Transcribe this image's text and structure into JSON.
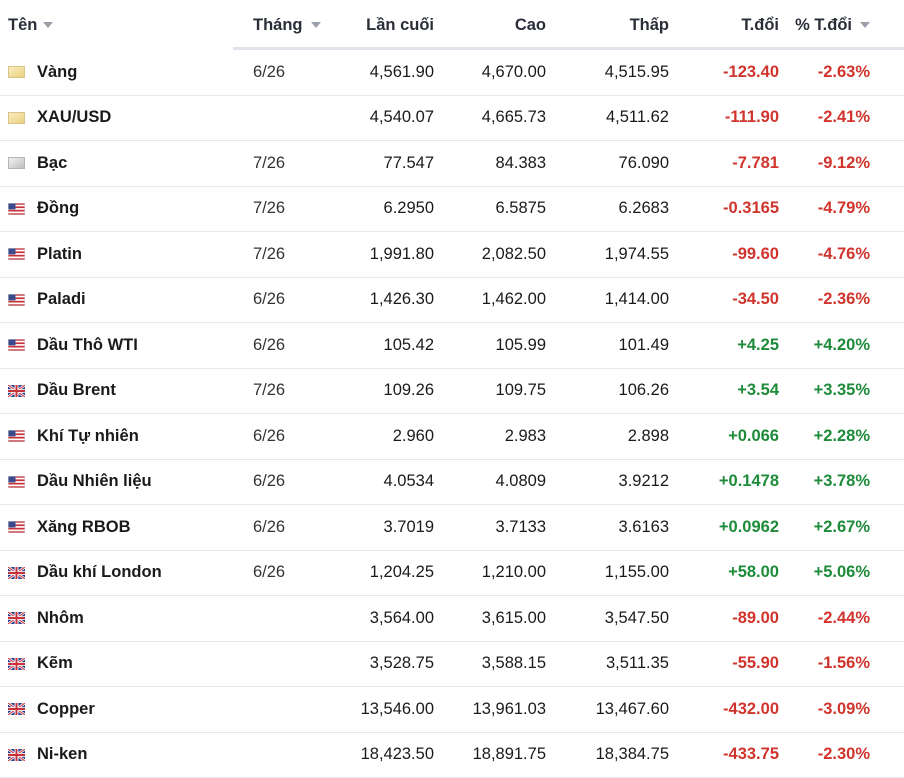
{
  "header": {
    "name": "Tên",
    "month": "Tháng",
    "last": "Lần cuối",
    "high": "Cao",
    "low": "Thấp",
    "change": "T.đổi",
    "change_pct": "% T.đổi"
  },
  "colors": {
    "negative": "#d0342c",
    "positive": "#1e8b3a"
  },
  "rows": [
    {
      "icon": "gold-icon",
      "name": "Vàng",
      "month": "6/26",
      "last": "4,561.90",
      "high": "4,670.00",
      "low": "4,515.95",
      "change": "-123.40",
      "change_pct": "-2.63%"
    },
    {
      "icon": "gold-icon",
      "name": "XAU/USD",
      "month": "",
      "last": "4,540.07",
      "high": "4,665.73",
      "low": "4,511.62",
      "change": "-111.90",
      "change_pct": "-2.41%"
    },
    {
      "icon": "silver-icon",
      "name": "Bạc",
      "month": "7/26",
      "last": "77.547",
      "high": "84.383",
      "low": "76.090",
      "change": "-7.781",
      "change_pct": "-9.12%"
    },
    {
      "icon": "us-flag-icon",
      "name": "Đồng",
      "month": "7/26",
      "last": "6.2950",
      "high": "6.5875",
      "low": "6.2683",
      "change": "-0.3165",
      "change_pct": "-4.79%"
    },
    {
      "icon": "us-flag-icon",
      "name": "Platin",
      "month": "7/26",
      "last": "1,991.80",
      "high": "2,082.50",
      "low": "1,974.55",
      "change": "-99.60",
      "change_pct": "-4.76%"
    },
    {
      "icon": "us-flag-icon",
      "name": "Paladi",
      "month": "6/26",
      "last": "1,426.30",
      "high": "1,462.00",
      "low": "1,414.00",
      "change": "-34.50",
      "change_pct": "-2.36%"
    },
    {
      "icon": "us-flag-icon",
      "name": "Dầu Thô WTI",
      "month": "6/26",
      "last": "105.42",
      "high": "105.99",
      "low": "101.49",
      "change": "+4.25",
      "change_pct": "+4.20%"
    },
    {
      "icon": "uk-flag-icon",
      "name": "Dầu Brent",
      "month": "7/26",
      "last": "109.26",
      "high": "109.75",
      "low": "106.26",
      "change": "+3.54",
      "change_pct": "+3.35%"
    },
    {
      "icon": "us-flag-icon",
      "name": "Khí Tự nhiên",
      "month": "6/26",
      "last": "2.960",
      "high": "2.983",
      "low": "2.898",
      "change": "+0.066",
      "change_pct": "+2.28%"
    },
    {
      "icon": "us-flag-icon",
      "name": "Dầu Nhiên liệu",
      "month": "6/26",
      "last": "4.0534",
      "high": "4.0809",
      "low": "3.9212",
      "change": "+0.1478",
      "change_pct": "+3.78%"
    },
    {
      "icon": "us-flag-icon",
      "name": "Xăng RBOB",
      "month": "6/26",
      "last": "3.7019",
      "high": "3.7133",
      "low": "3.6163",
      "change": "+0.0962",
      "change_pct": "+2.67%"
    },
    {
      "icon": "uk-flag-icon",
      "name": "Dầu khí London",
      "month": "6/26",
      "last": "1,204.25",
      "high": "1,210.00",
      "low": "1,155.00",
      "change": "+58.00",
      "change_pct": "+5.06%"
    },
    {
      "icon": "uk-flag-icon",
      "name": "Nhôm",
      "month": "",
      "last": "3,564.00",
      "high": "3,615.00",
      "low": "3,547.50",
      "change": "-89.00",
      "change_pct": "-2.44%"
    },
    {
      "icon": "uk-flag-icon",
      "name": "Kẽm",
      "month": "",
      "last": "3,528.75",
      "high": "3,588.15",
      "low": "3,511.35",
      "change": "-55.90",
      "change_pct": "-1.56%"
    },
    {
      "icon": "uk-flag-icon",
      "name": "Copper",
      "month": "",
      "last": "13,546.00",
      "high": "13,961.03",
      "low": "13,467.60",
      "change": "-432.00",
      "change_pct": "-3.09%"
    },
    {
      "icon": "uk-flag-icon",
      "name": "Ni-ken",
      "month": "",
      "last": "18,423.50",
      "high": "18,891.75",
      "low": "18,384.75",
      "change": "-433.75",
      "change_pct": "-2.30%"
    }
  ]
}
